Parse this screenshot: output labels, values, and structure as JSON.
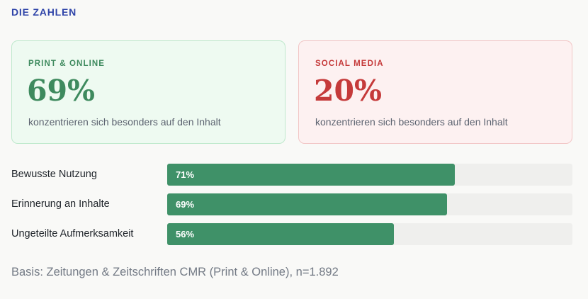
{
  "section": {
    "title": "DIE ZAHLEN"
  },
  "cards": [
    {
      "label": "PRINT & ONLINE",
      "value": "69%",
      "desc": "konzentrieren sich besonders auf den Inhalt"
    },
    {
      "label": "SOCIAL MEDIA",
      "value": "20%",
      "desc": "konzentrieren sich besonders auf den Inhalt"
    }
  ],
  "bars": [
    {
      "label": "Bewusste Nutzung",
      "value_text": "71%",
      "percent": 71
    },
    {
      "label": "Erinnerung an Inhalte",
      "value_text": "69%",
      "percent": 69
    },
    {
      "label": "Ungeteilte Aufmerksamkeit",
      "value_text": "56%",
      "percent": 56
    }
  ],
  "colors": {
    "title": "#2f44a8",
    "print_accent": "#3e8a5e",
    "social_accent": "#c53a3a",
    "bar_fill": "#3f9168",
    "bar_track": "#efefed"
  },
  "footnote": "Basis: Zeitungen & Zeitschriften CMR (Print & Online), n=1.892"
}
